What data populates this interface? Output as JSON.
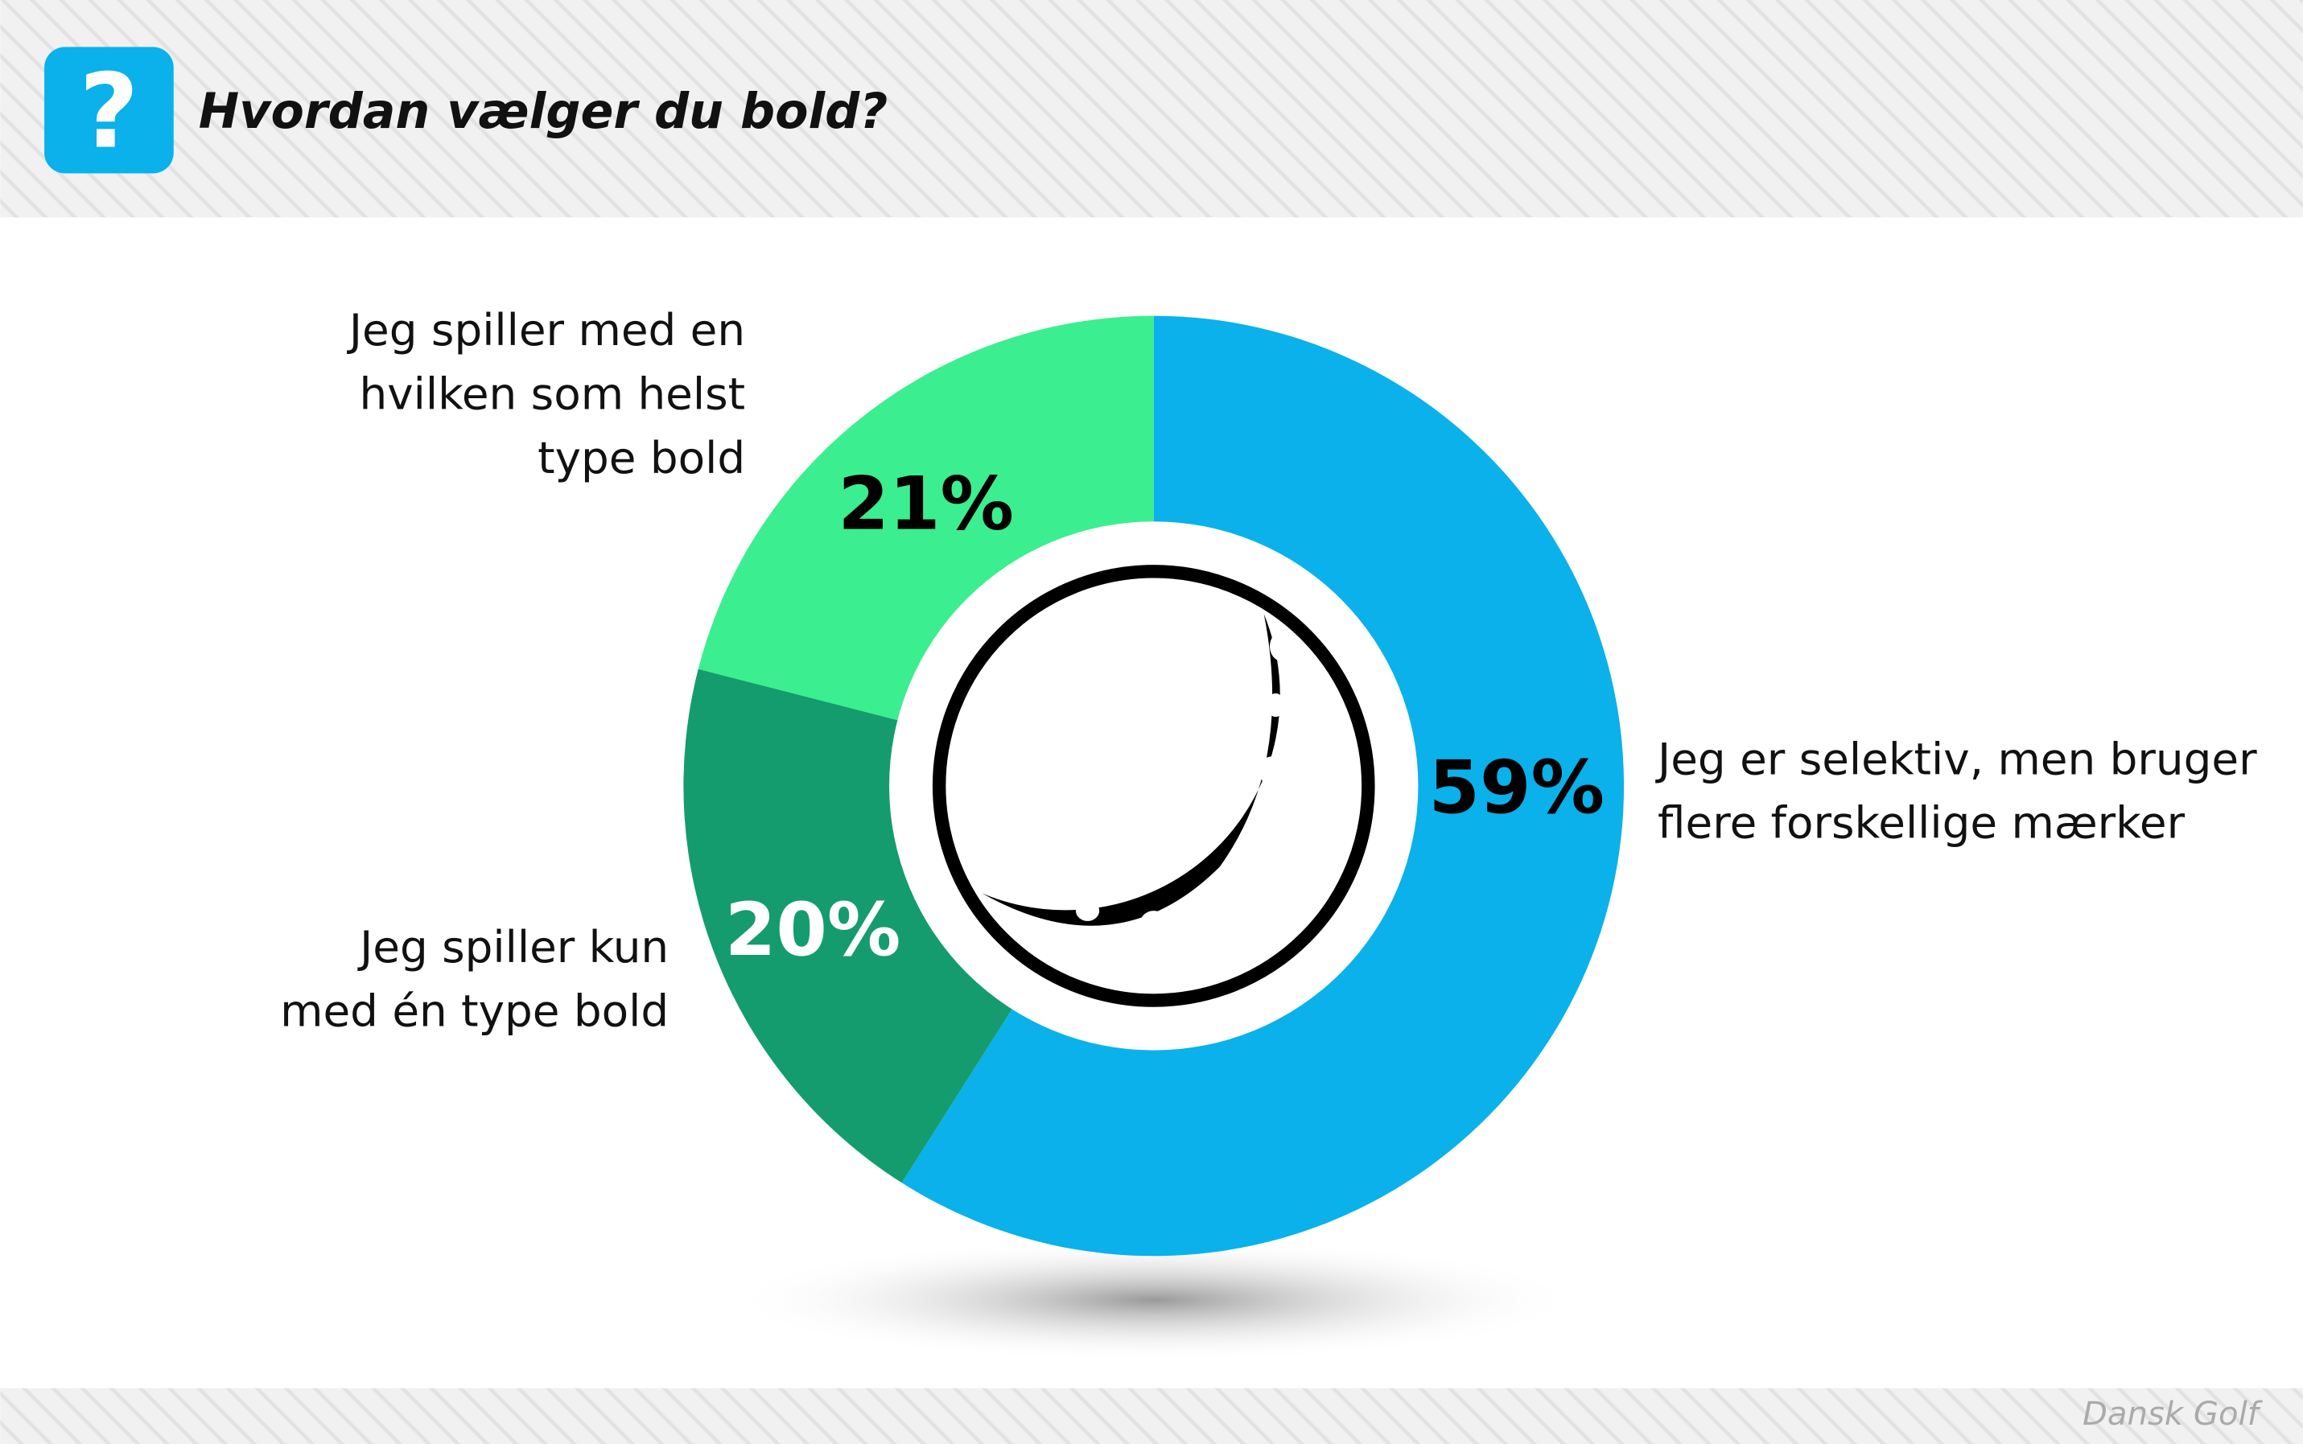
{
  "chart_data": {
    "type": "donut",
    "title": "Hvordan vælger du bold?",
    "categories": [
      "Jeg er selektiv, men bruger\nflere forskellige mærker",
      "Jeg spiller kun\nmed én type bold",
      "Jeg spiller med en\nhvilken som helst\ntype bold"
    ],
    "values": [
      59,
      20,
      21
    ],
    "value_labels": [
      "59%",
      "20%",
      "21%"
    ],
    "colors": [
      "#0ab1ea",
      "#149c6e",
      "#3bee8f"
    ],
    "value_label_colors": [
      "#000000",
      "#ffffff",
      "#000000"
    ],
    "source": "Dansk Golf"
  }
}
